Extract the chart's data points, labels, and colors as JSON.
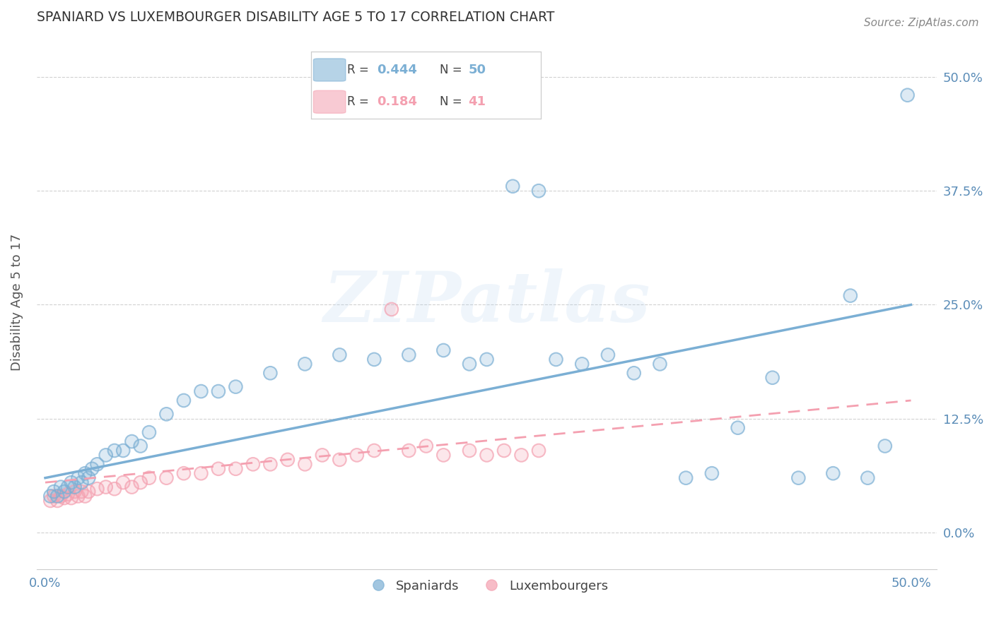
{
  "title": "SPANIARD VS LUXEMBOURGER DISABILITY AGE 5 TO 17 CORRELATION CHART",
  "source": "Source: ZipAtlas.com",
  "ylabel": "Disability Age 5 to 17",
  "xlim": [
    -0.005,
    0.515
  ],
  "ylim": [
    -0.04,
    0.545
  ],
  "ytick_labels": [
    "0.0%",
    "12.5%",
    "25.0%",
    "37.5%",
    "50.0%"
  ],
  "ytick_positions": [
    0.0,
    0.125,
    0.25,
    0.375,
    0.5
  ],
  "grid_color": "#cccccc",
  "background_color": "#ffffff",
  "watermark_text": "ZIPatlas",
  "blue_color": "#7bafd4",
  "pink_color": "#f4a0b0",
  "title_color": "#333333",
  "axis_label_color": "#555555",
  "tick_label_color": "#5b8db8",
  "source_color": "#888888",
  "sp_x": [
    0.003,
    0.005,
    0.007,
    0.009,
    0.011,
    0.013,
    0.015,
    0.017,
    0.019,
    0.021,
    0.023,
    0.025,
    0.027,
    0.03,
    0.035,
    0.04,
    0.045,
    0.05,
    0.055,
    0.06,
    0.07,
    0.08,
    0.09,
    0.1,
    0.11,
    0.13,
    0.15,
    0.17,
    0.19,
    0.21,
    0.23,
    0.245,
    0.255,
    0.27,
    0.285,
    0.295,
    0.31,
    0.325,
    0.34,
    0.355,
    0.37,
    0.385,
    0.4,
    0.42,
    0.435,
    0.455,
    0.465,
    0.475,
    0.485,
    0.498
  ],
  "sp_y": [
    0.04,
    0.045,
    0.04,
    0.05,
    0.045,
    0.05,
    0.055,
    0.05,
    0.06,
    0.055,
    0.065,
    0.06,
    0.07,
    0.075,
    0.085,
    0.09,
    0.09,
    0.1,
    0.095,
    0.11,
    0.13,
    0.145,
    0.155,
    0.155,
    0.16,
    0.175,
    0.185,
    0.195,
    0.19,
    0.195,
    0.2,
    0.185,
    0.19,
    0.38,
    0.375,
    0.19,
    0.185,
    0.195,
    0.175,
    0.185,
    0.06,
    0.065,
    0.115,
    0.17,
    0.06,
    0.065,
    0.26,
    0.06,
    0.095,
    0.48
  ],
  "lx_x": [
    0.003,
    0.005,
    0.007,
    0.009,
    0.011,
    0.013,
    0.015,
    0.017,
    0.019,
    0.021,
    0.023,
    0.025,
    0.03,
    0.035,
    0.04,
    0.045,
    0.05,
    0.055,
    0.06,
    0.07,
    0.08,
    0.09,
    0.1,
    0.11,
    0.12,
    0.13,
    0.14,
    0.15,
    0.16,
    0.17,
    0.18,
    0.19,
    0.2,
    0.21,
    0.22,
    0.23,
    0.245,
    0.255,
    0.265,
    0.275,
    0.285
  ],
  "lx_y": [
    0.035,
    0.04,
    0.035,
    0.04,
    0.038,
    0.042,
    0.038,
    0.045,
    0.04,
    0.045,
    0.04,
    0.045,
    0.048,
    0.05,
    0.048,
    0.055,
    0.05,
    0.055,
    0.06,
    0.06,
    0.065,
    0.065,
    0.07,
    0.07,
    0.075,
    0.075,
    0.08,
    0.075,
    0.085,
    0.08,
    0.085,
    0.09,
    0.245,
    0.09,
    0.095,
    0.085,
    0.09,
    0.085,
    0.09,
    0.085,
    0.09
  ],
  "blue_line_x": [
    0.0,
    0.5
  ],
  "blue_line_y": [
    0.06,
    0.25
  ],
  "pink_line_x": [
    0.0,
    0.5
  ],
  "pink_line_y": [
    0.055,
    0.145
  ]
}
